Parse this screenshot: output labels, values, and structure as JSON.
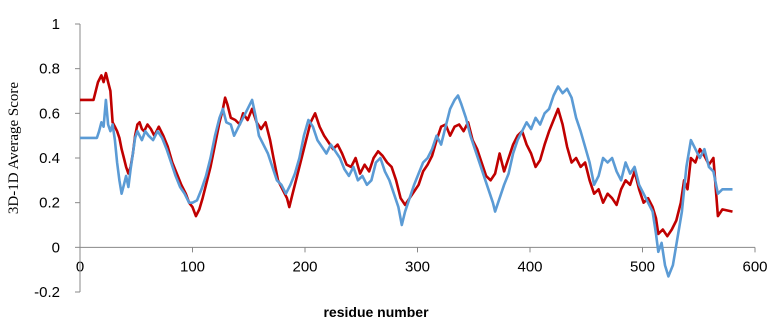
{
  "chart_data": {
    "type": "line",
    "title": "",
    "xlabel": "residue number",
    "ylabel": "3D-1D Average Score",
    "xlim": [
      0,
      600
    ],
    "ylim": [
      -0.2,
      1
    ],
    "x_ticks": [
      0,
      100,
      200,
      300,
      400,
      500,
      600
    ],
    "y_ticks": [
      -0.2,
      0,
      0.2,
      0.4,
      0.6,
      0.8,
      1
    ],
    "x_tick_labels": [
      "0",
      "100",
      "200",
      "300",
      "400",
      "500",
      "600"
    ],
    "y_tick_labels": [
      "-0.2",
      "0",
      "0.2",
      "0.4",
      "0.6",
      "0.8",
      "1"
    ],
    "grid": false,
    "legend": "none",
    "series": [
      {
        "color": "#c00000",
        "points": [
          [
            0,
            0.66
          ],
          [
            12,
            0.66
          ],
          [
            16,
            0.74
          ],
          [
            19,
            0.77
          ],
          [
            21,
            0.74
          ],
          [
            23,
            0.78
          ],
          [
            25,
            0.74
          ],
          [
            27,
            0.7
          ],
          [
            29,
            0.56
          ],
          [
            31,
            0.54
          ],
          [
            33,
            0.52
          ],
          [
            35,
            0.49
          ],
          [
            37,
            0.44
          ],
          [
            39,
            0.4
          ],
          [
            41,
            0.36
          ],
          [
            43,
            0.33
          ],
          [
            45,
            0.36
          ],
          [
            47,
            0.42
          ],
          [
            49,
            0.5
          ],
          [
            51,
            0.55
          ],
          [
            53,
            0.56
          ],
          [
            55,
            0.53
          ],
          [
            57,
            0.52
          ],
          [
            60,
            0.55
          ],
          [
            63,
            0.53
          ],
          [
            66,
            0.5
          ],
          [
            70,
            0.54
          ],
          [
            74,
            0.5
          ],
          [
            78,
            0.45
          ],
          [
            82,
            0.38
          ],
          [
            86,
            0.33
          ],
          [
            90,
            0.28
          ],
          [
            94,
            0.24
          ],
          [
            97,
            0.2
          ],
          [
            100,
            0.18
          ],
          [
            103,
            0.14
          ],
          [
            106,
            0.17
          ],
          [
            109,
            0.22
          ],
          [
            112,
            0.28
          ],
          [
            116,
            0.36
          ],
          [
            120,
            0.46
          ],
          [
            124,
            0.56
          ],
          [
            127,
            0.62
          ],
          [
            129,
            0.67
          ],
          [
            131,
            0.64
          ],
          [
            134,
            0.58
          ],
          [
            138,
            0.57
          ],
          [
            142,
            0.55
          ],
          [
            145,
            0.6
          ],
          [
            149,
            0.57
          ],
          [
            153,
            0.62
          ],
          [
            157,
            0.56
          ],
          [
            161,
            0.53
          ],
          [
            165,
            0.56
          ],
          [
            169,
            0.48
          ],
          [
            172,
            0.4
          ],
          [
            176,
            0.3
          ],
          [
            180,
            0.26
          ],
          [
            184,
            0.22
          ],
          [
            186,
            0.18
          ],
          [
            189,
            0.24
          ],
          [
            193,
            0.32
          ],
          [
            197,
            0.4
          ],
          [
            201,
            0.48
          ],
          [
            205,
            0.56
          ],
          [
            209,
            0.6
          ],
          [
            213,
            0.54
          ],
          [
            217,
            0.5
          ],
          [
            221,
            0.47
          ],
          [
            225,
            0.44
          ],
          [
            229,
            0.46
          ],
          [
            233,
            0.42
          ],
          [
            237,
            0.37
          ],
          [
            241,
            0.36
          ],
          [
            245,
            0.4
          ],
          [
            249,
            0.33
          ],
          [
            253,
            0.37
          ],
          [
            257,
            0.34
          ],
          [
            261,
            0.4
          ],
          [
            265,
            0.43
          ],
          [
            269,
            0.41
          ],
          [
            273,
            0.38
          ],
          [
            277,
            0.36
          ],
          [
            281,
            0.3
          ],
          [
            285,
            0.22
          ],
          [
            289,
            0.19
          ],
          [
            293,
            0.22
          ],
          [
            297,
            0.25
          ],
          [
            301,
            0.28
          ],
          [
            305,
            0.34
          ],
          [
            309,
            0.37
          ],
          [
            313,
            0.41
          ],
          [
            317,
            0.48
          ],
          [
            321,
            0.54
          ],
          [
            325,
            0.55
          ],
          [
            329,
            0.5
          ],
          [
            333,
            0.54
          ],
          [
            337,
            0.55
          ],
          [
            341,
            0.52
          ],
          [
            345,
            0.56
          ],
          [
            349,
            0.48
          ],
          [
            353,
            0.44
          ],
          [
            357,
            0.38
          ],
          [
            361,
            0.32
          ],
          [
            365,
            0.3
          ],
          [
            369,
            0.33
          ],
          [
            373,
            0.42
          ],
          [
            377,
            0.34
          ],
          [
            381,
            0.4
          ],
          [
            385,
            0.46
          ],
          [
            389,
            0.5
          ],
          [
            393,
            0.52
          ],
          [
            397,
            0.46
          ],
          [
            401,
            0.42
          ],
          [
            405,
            0.36
          ],
          [
            409,
            0.39
          ],
          [
            413,
            0.46
          ],
          [
            417,
            0.52
          ],
          [
            421,
            0.57
          ],
          [
            425,
            0.62
          ],
          [
            429,
            0.55
          ],
          [
            433,
            0.45
          ],
          [
            437,
            0.38
          ],
          [
            441,
            0.4
          ],
          [
            445,
            0.36
          ],
          [
            449,
            0.38
          ],
          [
            453,
            0.3
          ],
          [
            457,
            0.24
          ],
          [
            461,
            0.26
          ],
          [
            465,
            0.2
          ],
          [
            469,
            0.24
          ],
          [
            473,
            0.22
          ],
          [
            477,
            0.19
          ],
          [
            481,
            0.26
          ],
          [
            485,
            0.3
          ],
          [
            489,
            0.28
          ],
          [
            493,
            0.34
          ],
          [
            497,
            0.26
          ],
          [
            501,
            0.2
          ],
          [
            505,
            0.22
          ],
          [
            509,
            0.18
          ],
          [
            512,
            0.13
          ],
          [
            514,
            0.06
          ],
          [
            518,
            0.08
          ],
          [
            522,
            0.05
          ],
          [
            526,
            0.08
          ],
          [
            530,
            0.12
          ],
          [
            534,
            0.2
          ],
          [
            537,
            0.3
          ],
          [
            540,
            0.26
          ],
          [
            543,
            0.4
          ],
          [
            547,
            0.38
          ],
          [
            551,
            0.44
          ],
          [
            555,
            0.41
          ],
          [
            559,
            0.37
          ],
          [
            563,
            0.4
          ],
          [
            567,
            0.14
          ],
          [
            571,
            0.17
          ],
          [
            580,
            0.16
          ]
        ]
      },
      {
        "color": "#5b9bd5",
        "points": [
          [
            0,
            0.49
          ],
          [
            15,
            0.49
          ],
          [
            17,
            0.52
          ],
          [
            19,
            0.56
          ],
          [
            21,
            0.54
          ],
          [
            23,
            0.66
          ],
          [
            25,
            0.55
          ],
          [
            27,
            0.52
          ],
          [
            29,
            0.55
          ],
          [
            31,
            0.48
          ],
          [
            33,
            0.38
          ],
          [
            35,
            0.3
          ],
          [
            37,
            0.24
          ],
          [
            39,
            0.28
          ],
          [
            41,
            0.32
          ],
          [
            43,
            0.27
          ],
          [
            45,
            0.35
          ],
          [
            47,
            0.42
          ],
          [
            49,
            0.49
          ],
          [
            51,
            0.52
          ],
          [
            53,
            0.5
          ],
          [
            55,
            0.48
          ],
          [
            58,
            0.52
          ],
          [
            61,
            0.5
          ],
          [
            65,
            0.48
          ],
          [
            69,
            0.52
          ],
          [
            73,
            0.49
          ],
          [
            77,
            0.44
          ],
          [
            81,
            0.38
          ],
          [
            85,
            0.32
          ],
          [
            89,
            0.27
          ],
          [
            93,
            0.24
          ],
          [
            97,
            0.2
          ],
          [
            100,
            0.2
          ],
          [
            104,
            0.21
          ],
          [
            108,
            0.26
          ],
          [
            112,
            0.32
          ],
          [
            116,
            0.4
          ],
          [
            120,
            0.5
          ],
          [
            124,
            0.58
          ],
          [
            127,
            0.62
          ],
          [
            130,
            0.56
          ],
          [
            134,
            0.55
          ],
          [
            137,
            0.5
          ],
          [
            141,
            0.54
          ],
          [
            145,
            0.58
          ],
          [
            149,
            0.62
          ],
          [
            153,
            0.66
          ],
          [
            156,
            0.59
          ],
          [
            159,
            0.5
          ],
          [
            163,
            0.46
          ],
          [
            167,
            0.42
          ],
          [
            171,
            0.36
          ],
          [
            175,
            0.3
          ],
          [
            179,
            0.28
          ],
          [
            183,
            0.24
          ],
          [
            187,
            0.28
          ],
          [
            191,
            0.33
          ],
          [
            195,
            0.4
          ],
          [
            199,
            0.5
          ],
          [
            203,
            0.57
          ],
          [
            207,
            0.54
          ],
          [
            211,
            0.48
          ],
          [
            215,
            0.45
          ],
          [
            219,
            0.42
          ],
          [
            223,
            0.46
          ],
          [
            227,
            0.43
          ],
          [
            231,
            0.4
          ],
          [
            235,
            0.35
          ],
          [
            239,
            0.32
          ],
          [
            243,
            0.36
          ],
          [
            247,
            0.3
          ],
          [
            251,
            0.32
          ],
          [
            255,
            0.28
          ],
          [
            259,
            0.3
          ],
          [
            263,
            0.38
          ],
          [
            267,
            0.4
          ],
          [
            271,
            0.34
          ],
          [
            275,
            0.3
          ],
          [
            279,
            0.24
          ],
          [
            283,
            0.18
          ],
          [
            286,
            0.1
          ],
          [
            289,
            0.16
          ],
          [
            293,
            0.22
          ],
          [
            297,
            0.28
          ],
          [
            301,
            0.33
          ],
          [
            305,
            0.38
          ],
          [
            309,
            0.4
          ],
          [
            313,
            0.44
          ],
          [
            317,
            0.5
          ],
          [
            321,
            0.46
          ],
          [
            325,
            0.54
          ],
          [
            329,
            0.62
          ],
          [
            333,
            0.66
          ],
          [
            336,
            0.68
          ],
          [
            339,
            0.64
          ],
          [
            343,
            0.58
          ],
          [
            347,
            0.5
          ],
          [
            351,
            0.44
          ],
          [
            355,
            0.38
          ],
          [
            359,
            0.32
          ],
          [
            363,
            0.26
          ],
          [
            367,
            0.2
          ],
          [
            369,
            0.16
          ],
          [
            373,
            0.22
          ],
          [
            377,
            0.28
          ],
          [
            381,
            0.33
          ],
          [
            385,
            0.42
          ],
          [
            389,
            0.48
          ],
          [
            393,
            0.52
          ],
          [
            397,
            0.56
          ],
          [
            401,
            0.53
          ],
          [
            405,
            0.58
          ],
          [
            409,
            0.55
          ],
          [
            413,
            0.6
          ],
          [
            417,
            0.62
          ],
          [
            421,
            0.68
          ],
          [
            425,
            0.72
          ],
          [
            429,
            0.69
          ],
          [
            433,
            0.71
          ],
          [
            437,
            0.67
          ],
          [
            441,
            0.58
          ],
          [
            445,
            0.52
          ],
          [
            449,
            0.45
          ],
          [
            453,
            0.38
          ],
          [
            457,
            0.28
          ],
          [
            461,
            0.32
          ],
          [
            465,
            0.4
          ],
          [
            469,
            0.38
          ],
          [
            473,
            0.4
          ],
          [
            477,
            0.34
          ],
          [
            481,
            0.3
          ],
          [
            485,
            0.38
          ],
          [
            489,
            0.33
          ],
          [
            493,
            0.36
          ],
          [
            497,
            0.28
          ],
          [
            501,
            0.24
          ],
          [
            505,
            0.2
          ],
          [
            509,
            0.16
          ],
          [
            512,
            0.06
          ],
          [
            514,
            -0.02
          ],
          [
            517,
            0.02
          ],
          [
            520,
            -0.08
          ],
          [
            523,
            -0.13
          ],
          [
            527,
            -0.08
          ],
          [
            531,
            0.04
          ],
          [
            535,
            0.16
          ],
          [
            539,
            0.36
          ],
          [
            543,
            0.48
          ],
          [
            547,
            0.44
          ],
          [
            551,
            0.4
          ],
          [
            555,
            0.44
          ],
          [
            559,
            0.36
          ],
          [
            563,
            0.34
          ],
          [
            567,
            0.24
          ],
          [
            571,
            0.26
          ],
          [
            580,
            0.26
          ]
        ]
      }
    ]
  }
}
